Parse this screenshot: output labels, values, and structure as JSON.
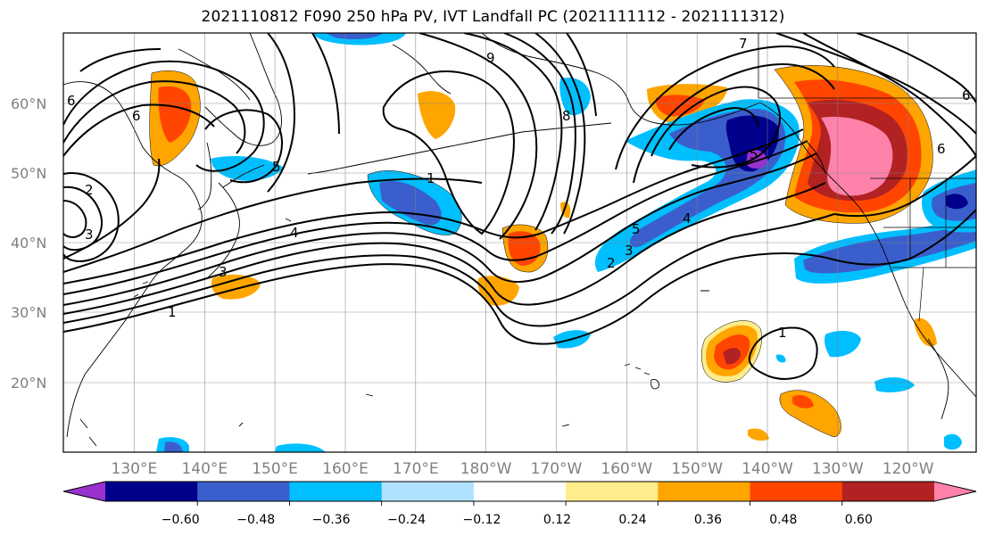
{
  "title": "2021110812 F090 250 hPa PV, IVT Landfall PC (2021111112 - 2021111312)",
  "lat_labels": [
    "60°N",
    "50°N",
    "40°N",
    "30°N",
    "20°N"
  ],
  "lon_labels": [
    "130°E",
    "140°E",
    "150°E",
    "160°E",
    "170°E",
    "180°W",
    "170°W",
    "160°W",
    "150°W",
    "140°W",
    "130°W",
    "120°W"
  ],
  "colorbar": {
    "ticks": [
      "−0.60",
      "−0.48",
      "−0.36",
      "−0.24",
      "−0.12",
      "0.12",
      "0.24",
      "0.36",
      "0.48",
      "0.60"
    ],
    "colors": [
      "#9932cc",
      "#00008b",
      "#3a5fcd",
      "#00bfff",
      "#b0e2ff",
      "#ffffff",
      "#ffec8b",
      "#ffa500",
      "#ff4500",
      "#b22222",
      "#ff82ab"
    ],
    "extend": "both"
  },
  "contour_labels": [
    "1",
    "2",
    "3",
    "4",
    "5",
    "6",
    "7",
    "8",
    "9",
    "1",
    "3",
    "5",
    "6",
    "2",
    "3",
    "4",
    "5",
    "6",
    "1",
    "6"
  ],
  "colors": {
    "frame": "#000000",
    "grid": "#808080",
    "contour": "#000000"
  }
}
